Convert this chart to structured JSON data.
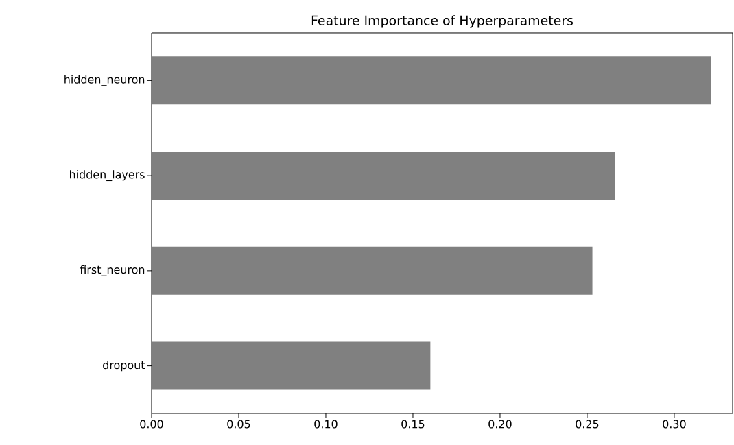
{
  "chart_data": {
    "type": "bar",
    "orientation": "horizontal",
    "title": "Feature Importance of Hyperparameters",
    "categories": [
      "hidden_neuron",
      "hidden_layers",
      "first_neuron",
      "dropout"
    ],
    "values": [
      0.321,
      0.266,
      0.253,
      0.16
    ],
    "color": "#808080",
    "xlim": [
      0,
      0.3335
    ],
    "xticks": [
      {
        "value": 0,
        "label": "0.00"
      },
      {
        "value": 0.05,
        "label": "0.05"
      },
      {
        "value": 0.1,
        "label": "0.10"
      },
      {
        "value": 0.15,
        "label": "0.15"
      },
      {
        "value": 0.2,
        "label": "0.20"
      },
      {
        "value": 0.25,
        "label": "0.25"
      },
      {
        "value": 0.3,
        "label": "0.30"
      }
    ],
    "grid": false
  }
}
